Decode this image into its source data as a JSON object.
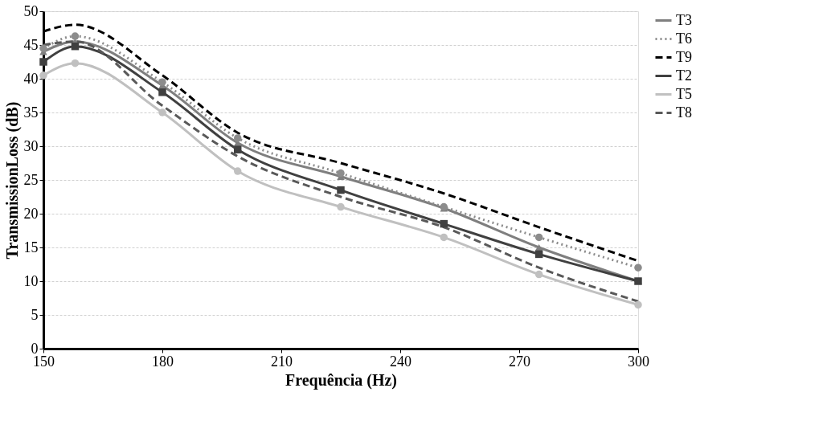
{
  "chart_data": {
    "type": "line",
    "xlabel": "Frequência (Hz)",
    "ylabel": "TransmissionLoss (dB)",
    "xlim": [
      150,
      300
    ],
    "xticks": [
      150,
      180,
      210,
      240,
      270,
      300
    ],
    "ylim": [
      0,
      50
    ],
    "yticks": [
      0,
      5,
      10,
      15,
      20,
      25,
      30,
      35,
      40,
      45,
      50
    ],
    "grid": "y",
    "legend": "right",
    "x": [
      150,
      158,
      180,
      199,
      225,
      251,
      275,
      300
    ],
    "series": [
      {
        "name": "T3",
        "color": "#7f7f7f",
        "marker": "triangle",
        "line_style": "solid",
        "values": [
          44,
          45.5,
          39,
          30.5,
          25.5,
          20.8,
          15,
          10
        ]
      },
      {
        "name": "T6",
        "color": "#8c8c8c",
        "marker": "circle",
        "line_style": "dotted",
        "values": [
          44.5,
          46.3,
          39.5,
          31.2,
          26,
          21,
          16.5,
          12
        ]
      },
      {
        "name": "T9",
        "color": "#000000",
        "marker": "none",
        "line_style": "dashed",
        "values": [
          47,
          48,
          40.5,
          32,
          27.5,
          23,
          18,
          13
        ]
      },
      {
        "name": "T2",
        "color": "#404040",
        "marker": "square",
        "line_style": "solid",
        "values": [
          42.5,
          44.8,
          38,
          29.5,
          23.5,
          18.5,
          14,
          10
        ]
      },
      {
        "name": "T5",
        "color": "#c0c0c0",
        "marker": "circle",
        "line_style": "solid",
        "values": [
          40.5,
          42.3,
          35,
          26.3,
          21,
          16.5,
          11,
          6.5
        ]
      },
      {
        "name": "T8",
        "color": "#595959",
        "marker": "none",
        "line_style": "dashed",
        "values": [
          45,
          45.5,
          36,
          28.5,
          22.5,
          18,
          12,
          7
        ]
      }
    ]
  }
}
